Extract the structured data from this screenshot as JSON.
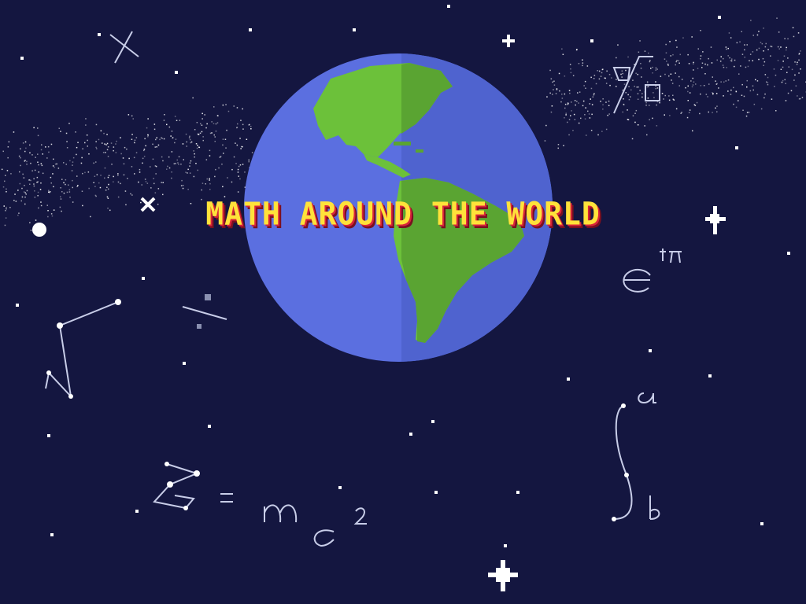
{
  "game": {
    "title": "MATH AROUND THE WORLD"
  },
  "colors": {
    "sky": "#141640",
    "ocean_light": "#5b6fe0",
    "ocean_dark": "#4f63cf",
    "land_light": "#6cc13a",
    "land_dark": "#5aa432",
    "star": "#ffffff",
    "constellation": "#c8cde8",
    "title_fill": "#ffe23a",
    "title_shadow": "#d9243a"
  },
  "scribbles": {
    "emc2": "= mc",
    "emc2_exp": "2",
    "e_power": "e",
    "e_exponent": "iπ",
    "integral_upper": "a",
    "integral_lower": "b"
  }
}
